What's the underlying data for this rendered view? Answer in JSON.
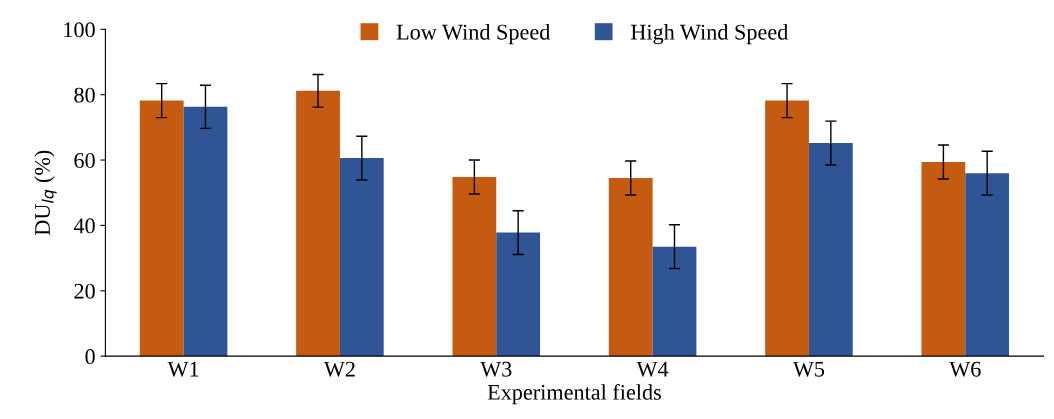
{
  "chart_data": {
    "type": "bar",
    "xlabel": "Experimental fields",
    "ylabel": "DU$_{lq}$ (%)",
    "categories": [
      "W1",
      "W2",
      "W3",
      "W4",
      "W5",
      "W6"
    ],
    "series": [
      {
        "name": "Low Wind Speed",
        "color": "#c55a11",
        "values": [
          78.2,
          81.2,
          54.8,
          54.5,
          78.2,
          59.4
        ],
        "errors": [
          5.2,
          5,
          5.2,
          5.2,
          5.2,
          5.2
        ]
      },
      {
        "name": "High Wind Speed",
        "color": "#2f5597",
        "values": [
          76.3,
          60.6,
          37.8,
          33.5,
          65.2,
          56
        ],
        "errors": [
          6.6,
          6.7,
          6.7,
          6.7,
          6.7,
          6.7
        ]
      }
    ],
    "ylim": [
      0,
      100
    ],
    "yticks": [
      0,
      20,
      40,
      60,
      80,
      100
    ],
    "grid": false,
    "legend": "top"
  }
}
